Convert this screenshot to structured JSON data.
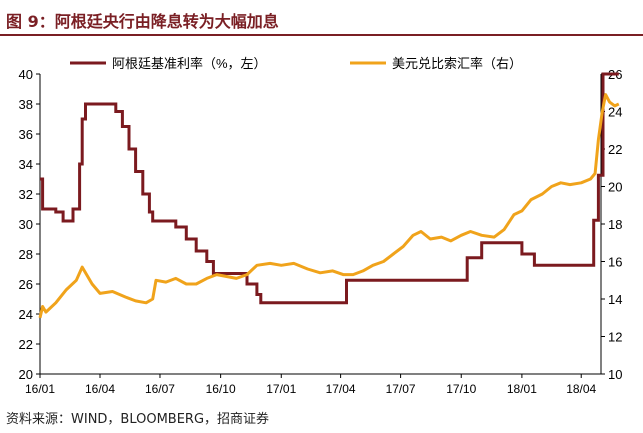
{
  "figure": {
    "title": "图 9：阿根廷央行由降息转为大幅加息",
    "source": "资料来源：WIND，BLOOMBERG，招商证券",
    "colors": {
      "title": "#7a1f24",
      "rule": "#7a1f24"
    }
  },
  "chart_data": {
    "type": "line",
    "x_ticks": [
      "16/01",
      "16/04",
      "16/07",
      "16/10",
      "17/01",
      "17/04",
      "17/07",
      "17/10",
      "18/01",
      "18/04"
    ],
    "xlim": [
      "2016-01",
      "2018-05"
    ],
    "y_left": {
      "label": "",
      "lim": [
        20,
        40
      ],
      "ticks": [
        20,
        22,
        24,
        26,
        28,
        30,
        32,
        34,
        36,
        38,
        40
      ]
    },
    "y_right": {
      "label": "",
      "lim": [
        10,
        26
      ],
      "ticks": [
        10,
        12,
        14,
        16,
        18,
        20,
        22,
        24,
        26
      ]
    },
    "grid": false,
    "legend_position": "top",
    "series": [
      {
        "name": "阿根廷基准利率（%，左）",
        "axis": "left",
        "color": "#7b1a1f",
        "step": true,
        "points": [
          [
            "2016-01-01",
            33.0
          ],
          [
            "2016-01-05",
            31.0
          ],
          [
            "2016-01-25",
            30.8
          ],
          [
            "2016-02-05",
            30.2
          ],
          [
            "2016-02-20",
            31.0
          ],
          [
            "2016-03-01",
            34.0
          ],
          [
            "2016-03-05",
            37.0
          ],
          [
            "2016-03-10",
            38.0
          ],
          [
            "2016-04-25",
            37.5
          ],
          [
            "2016-05-05",
            36.5
          ],
          [
            "2016-05-15",
            35.0
          ],
          [
            "2016-05-25",
            33.5
          ],
          [
            "2016-06-05",
            32.0
          ],
          [
            "2016-06-15",
            30.8
          ],
          [
            "2016-06-20",
            30.2
          ],
          [
            "2016-07-25",
            29.8
          ],
          [
            "2016-08-10",
            29.0
          ],
          [
            "2016-08-25",
            28.2
          ],
          [
            "2016-09-10",
            27.5
          ],
          [
            "2016-09-20",
            26.7
          ],
          [
            "2016-11-10",
            26.0
          ],
          [
            "2016-11-25",
            25.3
          ],
          [
            "2016-12-01",
            24.75
          ],
          [
            "2017-04-10",
            26.25
          ],
          [
            "2017-10-10",
            27.75
          ],
          [
            "2017-11-01",
            28.75
          ],
          [
            "2018-01-01",
            28.0
          ],
          [
            "2018-01-20",
            27.25
          ],
          [
            "2018-04-20",
            30.25
          ],
          [
            "2018-04-27",
            33.25
          ],
          [
            "2018-05-04",
            40.0
          ],
          [
            "2018-05-28",
            40.0
          ]
        ]
      },
      {
        "name": "美元兑比索汇率（右）",
        "axis": "right",
        "color": "#f0a31b",
        "step": false,
        "points": [
          [
            "2016-01-01",
            13.0
          ],
          [
            "2016-01-05",
            13.6
          ],
          [
            "2016-01-10",
            13.3
          ],
          [
            "2016-01-25",
            13.8
          ],
          [
            "2016-02-10",
            14.5
          ],
          [
            "2016-02-25",
            15.0
          ],
          [
            "2016-03-05",
            15.7
          ],
          [
            "2016-03-20",
            14.8
          ],
          [
            "2016-04-01",
            14.3
          ],
          [
            "2016-04-20",
            14.4
          ],
          [
            "2016-05-10",
            14.1
          ],
          [
            "2016-05-25",
            13.9
          ],
          [
            "2016-06-10",
            13.8
          ],
          [
            "2016-06-20",
            14.0
          ],
          [
            "2016-06-25",
            15.0
          ],
          [
            "2016-07-10",
            14.9
          ],
          [
            "2016-07-25",
            15.1
          ],
          [
            "2016-08-10",
            14.8
          ],
          [
            "2016-08-25",
            14.8
          ],
          [
            "2016-09-10",
            15.1
          ],
          [
            "2016-09-25",
            15.3
          ],
          [
            "2016-10-10",
            15.2
          ],
          [
            "2016-10-25",
            15.1
          ],
          [
            "2016-11-10",
            15.3
          ],
          [
            "2016-11-25",
            15.8
          ],
          [
            "2016-12-15",
            15.9
          ],
          [
            "2017-01-01",
            15.8
          ],
          [
            "2017-01-20",
            15.9
          ],
          [
            "2017-02-10",
            15.6
          ],
          [
            "2017-03-01",
            15.4
          ],
          [
            "2017-03-20",
            15.5
          ],
          [
            "2017-04-05",
            15.3
          ],
          [
            "2017-04-20",
            15.3
          ],
          [
            "2017-05-05",
            15.5
          ],
          [
            "2017-05-20",
            15.8
          ],
          [
            "2017-06-05",
            16.0
          ],
          [
            "2017-06-20",
            16.4
          ],
          [
            "2017-07-05",
            16.8
          ],
          [
            "2017-07-20",
            17.4
          ],
          [
            "2017-08-01",
            17.6
          ],
          [
            "2017-08-15",
            17.2
          ],
          [
            "2017-09-01",
            17.3
          ],
          [
            "2017-09-15",
            17.1
          ],
          [
            "2017-10-01",
            17.4
          ],
          [
            "2017-10-15",
            17.6
          ],
          [
            "2017-11-01",
            17.4
          ],
          [
            "2017-11-20",
            17.3
          ],
          [
            "2017-12-05",
            17.7
          ],
          [
            "2017-12-20",
            18.5
          ],
          [
            "2018-01-01",
            18.7
          ],
          [
            "2018-01-15",
            19.3
          ],
          [
            "2018-02-01",
            19.6
          ],
          [
            "2018-02-15",
            20.0
          ],
          [
            "2018-03-01",
            20.2
          ],
          [
            "2018-03-15",
            20.1
          ],
          [
            "2018-04-01",
            20.2
          ],
          [
            "2018-04-15",
            20.4
          ],
          [
            "2018-04-22",
            20.7
          ],
          [
            "2018-04-27",
            22.5
          ],
          [
            "2018-05-03",
            24.0
          ],
          [
            "2018-05-08",
            24.9
          ],
          [
            "2018-05-14",
            24.5
          ],
          [
            "2018-05-22",
            24.3
          ],
          [
            "2018-05-28",
            24.4
          ]
        ]
      }
    ]
  }
}
